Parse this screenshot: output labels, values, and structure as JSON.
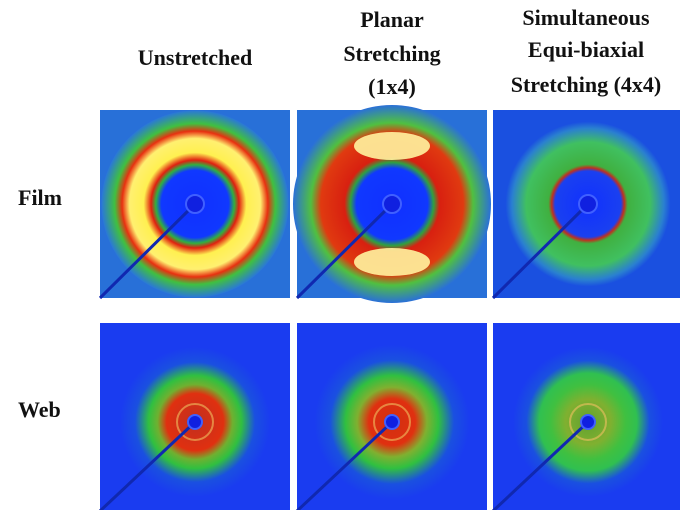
{
  "columns": [
    [
      "Unstretched"
    ],
    [
      "Planar",
      "Stretching",
      "(1x4)"
    ],
    [
      "Simultaneous",
      "Equi-biaxial",
      "Stretching (4x4)"
    ]
  ],
  "rows": [
    "Film",
    "Web"
  ]
}
